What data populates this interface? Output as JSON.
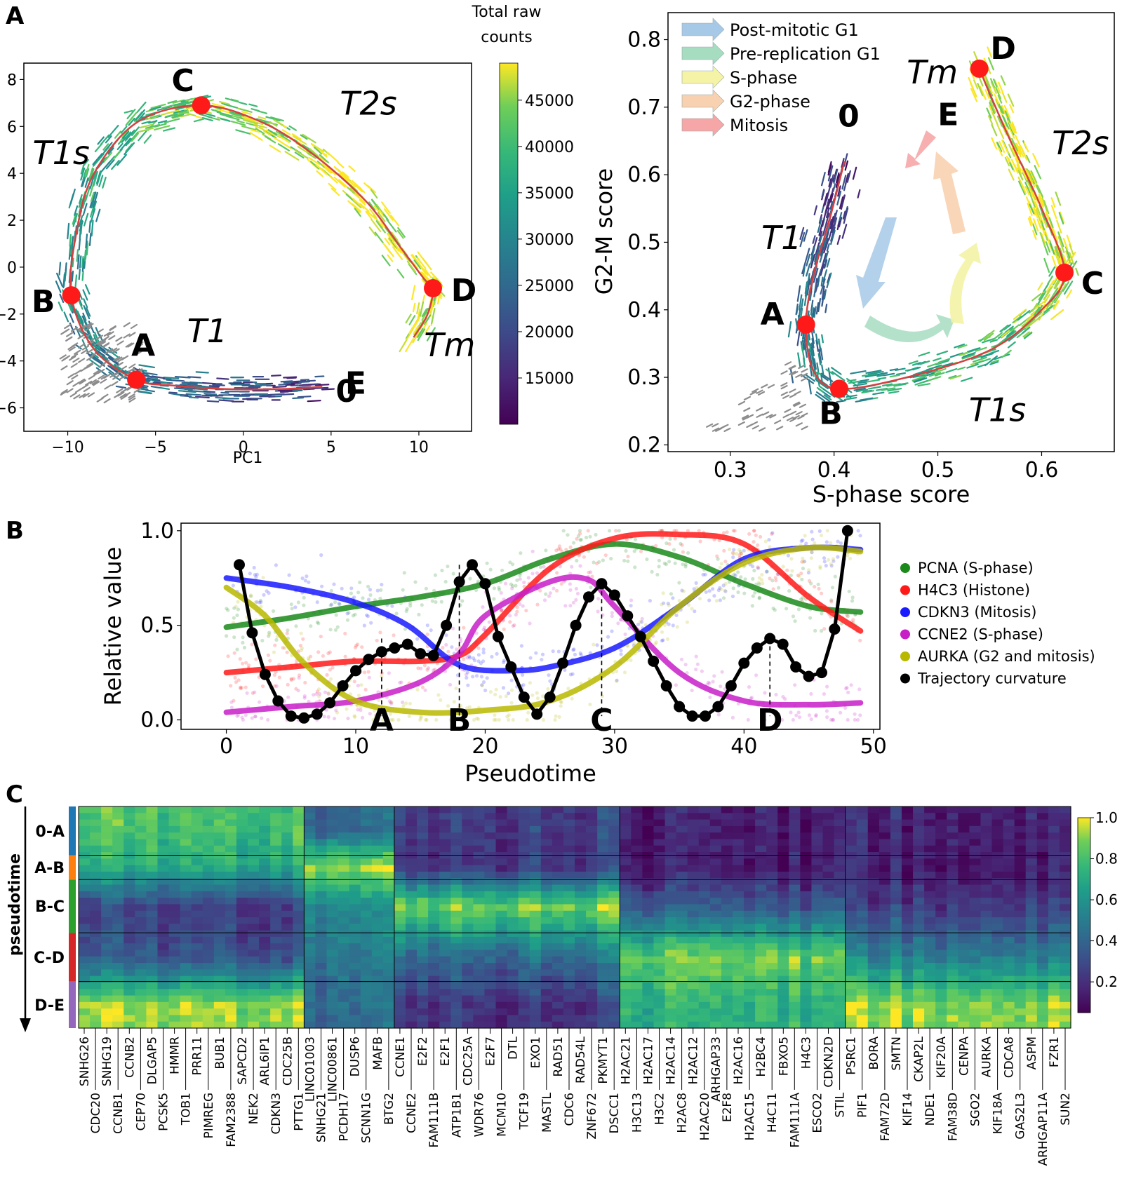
{
  "colors": {
    "curve": "#d44040",
    "node": "#ff1a1a",
    "pca_gray": "#8c8c8c"
  },
  "panel_labels": [
    "A",
    "B",
    "C"
  ],
  "chart_data": [
    {
      "type": "scatter",
      "panel": "A-left",
      "xlabel": "PC1",
      "ylabel": "",
      "xlim": [
        -12.5,
        13
      ],
      "ylim": [
        -7,
        8.7
      ],
      "xticks": [
        -10,
        -5,
        0,
        5,
        10
      ],
      "yticks": [
        -6,
        -4,
        -2,
        0,
        2,
        4,
        6,
        8
      ],
      "colorbar": {
        "title_line1": "Total raw",
        "title_line2": "counts",
        "range": [
          10000,
          49000
        ],
        "ticks": [
          15000,
          20000,
          25000,
          30000,
          35000,
          40000,
          45000
        ]
      },
      "trajectory": {
        "x": [
          4.5,
          2,
          -1,
          -4,
          -6.1,
          -8.5,
          -9.8,
          -9.5,
          -8.5,
          -6,
          -2.4,
          1,
          4,
          7,
          9,
          10.3,
          10.8,
          10.5,
          9.7
        ],
        "y": [
          -5.1,
          -5.2,
          -5.2,
          -5.05,
          -4.8,
          -3.5,
          -1.2,
          1.5,
          4,
          6.2,
          6.9,
          6.2,
          4.8,
          2.8,
          0.8,
          -0.5,
          -0.9,
          -2,
          -3
        ]
      },
      "nodes": [
        {
          "label": "0",
          "x": 5.0,
          "y": -5.2
        },
        {
          "label": "A",
          "x": -6.1,
          "y": -4.8
        },
        {
          "label": "B",
          "x": -9.8,
          "y": -1.2
        },
        {
          "label": "C",
          "x": -2.4,
          "y": 6.9
        },
        {
          "label": "D",
          "x": 10.8,
          "y": -0.9
        },
        {
          "label": "E",
          "x": 8.4,
          "y": -3.3
        }
      ],
      "region_labels": [
        {
          "text": "T1s",
          "x": -12,
          "y": 4.4
        },
        {
          "text": "T2s",
          "x": 5.5,
          "y": 6.5
        },
        {
          "text": "T1",
          "x": -3.2,
          "y": -3.2
        },
        {
          "text": "Tm",
          "x": 10.3,
          "y": -3.8
        }
      ]
    },
    {
      "type": "scatter",
      "panel": "A-right",
      "xlabel": "S-phase score",
      "ylabel": "G2-M score",
      "xlim": [
        0.24,
        0.67
      ],
      "ylim": [
        0.19,
        0.84
      ],
      "xticks": [
        0.3,
        0.4,
        0.5,
        0.6
      ],
      "yticks": [
        0.2,
        0.3,
        0.4,
        0.5,
        0.6,
        0.7,
        0.8
      ],
      "legend": [
        "Post-mitotic G1",
        "Pre-replication G1",
        "S-phase",
        "G2-phase",
        "Mitosis"
      ],
      "legend_colors": [
        "#a7c9e8",
        "#a6dcc0",
        "#f4f3a6",
        "#f8d2b0",
        "#f6a6a6"
      ],
      "trajectory": {
        "x": [
          0.41,
          0.395,
          0.38,
          0.373,
          0.38,
          0.405,
          0.47,
          0.55,
          0.6,
          0.622,
          0.6,
          0.57,
          0.55,
          0.54
        ],
        "y": [
          0.62,
          0.53,
          0.45,
          0.378,
          0.31,
          0.283,
          0.3,
          0.34,
          0.4,
          0.455,
          0.55,
          0.65,
          0.72,
          0.757
        ]
      },
      "nodes": [
        {
          "label": "0",
          "x": 0.41,
          "y": 0.64
        },
        {
          "label": "A",
          "x": 0.373,
          "y": 0.378
        },
        {
          "label": "B",
          "x": 0.405,
          "y": 0.283
        },
        {
          "label": "C",
          "x": 0.622,
          "y": 0.455
        },
        {
          "label": "D",
          "x": 0.54,
          "y": 0.757
        },
        {
          "label": "E",
          "x": 0.51,
          "y": 0.69
        }
      ],
      "region_labels": [
        {
          "text": "T1",
          "x": 0.33,
          "y": 0.49
        },
        {
          "text": "T1s",
          "x": 0.53,
          "y": 0.235
        },
        {
          "text": "T2s",
          "x": 0.61,
          "y": 0.63
        },
        {
          "text": "Tm",
          "x": 0.47,
          "y": 0.735
        }
      ]
    },
    {
      "type": "line",
      "panel": "B",
      "xlabel": "Pseudotime",
      "ylabel": "Relative value",
      "xlim": [
        -3.5,
        50.5
      ],
      "ylim": [
        -0.05,
        1.04
      ],
      "xticks": [
        0,
        10,
        20,
        30,
        40,
        50
      ],
      "yticks": [
        0.0,
        0.5,
        1.0
      ],
      "legend_position": "right",
      "series": [
        {
          "name": "PCNA (S-phase)",
          "color": "#1a8a1a",
          "x": [
            0,
            5,
            10,
            15,
            20,
            25,
            30,
            35,
            40,
            45,
            49
          ],
          "y": [
            0.49,
            0.54,
            0.6,
            0.65,
            0.72,
            0.85,
            0.93,
            0.86,
            0.72,
            0.6,
            0.57
          ]
        },
        {
          "name": "H4C3  (Histone)",
          "color": "#ff1a1a",
          "x": [
            0,
            5,
            10,
            15,
            18,
            20,
            25,
            30,
            35,
            40,
            45,
            49
          ],
          "y": [
            0.25,
            0.28,
            0.31,
            0.31,
            0.34,
            0.45,
            0.8,
            0.96,
            0.98,
            0.93,
            0.65,
            0.47
          ]
        },
        {
          "name": "CDKN3 (Mitosis)",
          "color": "#1a1aff",
          "x": [
            0,
            5,
            10,
            14,
            17,
            19,
            22,
            25,
            30,
            35,
            40,
            45,
            49
          ],
          "y": [
            0.75,
            0.7,
            0.62,
            0.5,
            0.33,
            0.27,
            0.26,
            0.28,
            0.38,
            0.6,
            0.85,
            0.91,
            0.9
          ]
        },
        {
          "name": "CCNE2 (S-phase)",
          "color": "#c81ec8",
          "x": [
            0,
            5,
            10,
            15,
            18,
            20,
            25,
            28,
            30,
            35,
            40,
            45,
            49
          ],
          "y": [
            0.04,
            0.07,
            0.1,
            0.2,
            0.35,
            0.55,
            0.73,
            0.74,
            0.6,
            0.25,
            0.1,
            0.08,
            0.09
          ]
        },
        {
          "name": "AURKA (G2 and mitosis)",
          "color": "#b8b800",
          "x": [
            0,
            3,
            6,
            10,
            15,
            20,
            25,
            30,
            35,
            40,
            45,
            49
          ],
          "y": [
            0.7,
            0.55,
            0.3,
            0.1,
            0.04,
            0.05,
            0.1,
            0.28,
            0.6,
            0.83,
            0.91,
            0.89
          ]
        },
        {
          "name": "Trajectory curvature",
          "color": "#000000",
          "x": [
            1,
            2,
            3,
            4,
            5,
            6,
            7,
            8,
            9,
            10,
            11,
            12,
            13,
            14,
            15,
            16,
            17,
            18,
            19,
            20,
            21,
            22,
            23,
            24,
            25,
            26,
            27,
            28,
            29,
            30,
            31,
            32,
            33,
            34,
            35,
            36,
            37,
            38,
            39,
            40,
            41,
            42,
            43,
            44,
            45,
            46,
            47,
            48
          ],
          "y": [
            0.82,
            0.46,
            0.24,
            0.1,
            0.02,
            0.01,
            0.03,
            0.09,
            0.18,
            0.26,
            0.32,
            0.36,
            0.38,
            0.4,
            0.35,
            0.34,
            0.5,
            0.73,
            0.82,
            0.72,
            0.44,
            0.28,
            0.12,
            0.03,
            0.12,
            0.3,
            0.5,
            0.65,
            0.72,
            0.66,
            0.55,
            0.44,
            0.31,
            0.18,
            0.07,
            0.02,
            0.02,
            0.07,
            0.18,
            0.3,
            0.38,
            0.43,
            0.4,
            0.28,
            0.23,
            0.25,
            0.48,
            1.0
          ]
        }
      ],
      "markers": [
        {
          "label": "A",
          "x": 12,
          "y": 0.43
        },
        {
          "label": "B",
          "x": 18,
          "y": 0.82
        },
        {
          "label": "C",
          "x": 29,
          "y": 0.72
        },
        {
          "label": "D",
          "x": 42,
          "y": 0.43
        }
      ]
    },
    {
      "type": "heatmap",
      "panel": "C",
      "ylabel": "pseudotime",
      "rows": [
        "0-A",
        "A-B",
        "B-C",
        "C-D",
        "D-E"
      ],
      "row_colors": [
        "#1f77b4",
        "#ff7f0e",
        "#2ca02c",
        "#d62728",
        "#9467bd"
      ],
      "colorbar": {
        "range": [
          0.05,
          1.0
        ],
        "ticks": [
          "0.2",
          "0.4",
          "0.6",
          "0.8",
          "1.0"
        ]
      },
      "genes": [
        "SNHG26",
        "CDC20",
        "SNHG19",
        "CCNB1",
        "CCNB2",
        "CEP70",
        "DLGAP5",
        "PCSK5",
        "HMMR",
        "TOB1",
        "PRR11",
        "PIMREG",
        "BUB1",
        "FAM2388",
        "SAPCD2",
        "NEK2",
        "ARL6IP1",
        "CDKN3",
        "CDC25B",
        "PTTG1",
        "LINC01003",
        "SNHG21",
        "LINC00861",
        "PCDH17",
        "DUSP6",
        "SCNN1G",
        "MAFB",
        "BTG2",
        "CCNE1",
        "CCNE2",
        "E2F2",
        "FAM111B",
        "E2F1",
        "ATP1B1",
        "CDC25A",
        "WDR76",
        "E2F7",
        "MCM10",
        "DTL",
        "TCF19",
        "EXO1",
        "MASTL",
        "RAD51",
        "CDC6",
        "RAD54L",
        "ZNF672",
        "PKMYT1",
        "DSCC1",
        "H2AC21",
        "H3C13",
        "H2AC17",
        "H3C2",
        "H2AC14",
        "H2AC8",
        "H2AC12",
        "H2AC20",
        "ARHGAP33",
        "E2F8",
        "H2AC16",
        "H2AC15",
        "H2BC4",
        "H4C11",
        "FBXO5",
        "FAM111A",
        "H4C3",
        "ESCO2",
        "CDKN2D",
        "STIL",
        "PSRC1",
        "PIF1",
        "BORA",
        "FAM72D",
        "SMTN",
        "KIF14",
        "CKAP2L",
        "NDE1",
        "KIF20A",
        "FAM38D",
        "CENPA",
        "SGO2",
        "AURKA",
        "KIF18A",
        "CDCA8",
        "GAS2L3",
        "ASPM",
        "ARHGAP11A",
        "FZR1",
        "SUN2"
      ],
      "cluster_boundaries_after_gene_index": [
        19,
        27,
        47,
        67
      ],
      "cluster_profiles": [
        [
          0.8,
          0.7,
          0.22,
          0.3,
          0.92
        ],
        [
          0.4,
          0.92,
          0.55,
          0.45,
          0.4
        ],
        [
          0.22,
          0.2,
          0.9,
          0.4,
          0.2
        ],
        [
          0.08,
          0.08,
          0.3,
          0.85,
          0.7
        ],
        [
          0.12,
          0.1,
          0.2,
          0.5,
          0.9
        ]
      ]
    }
  ]
}
